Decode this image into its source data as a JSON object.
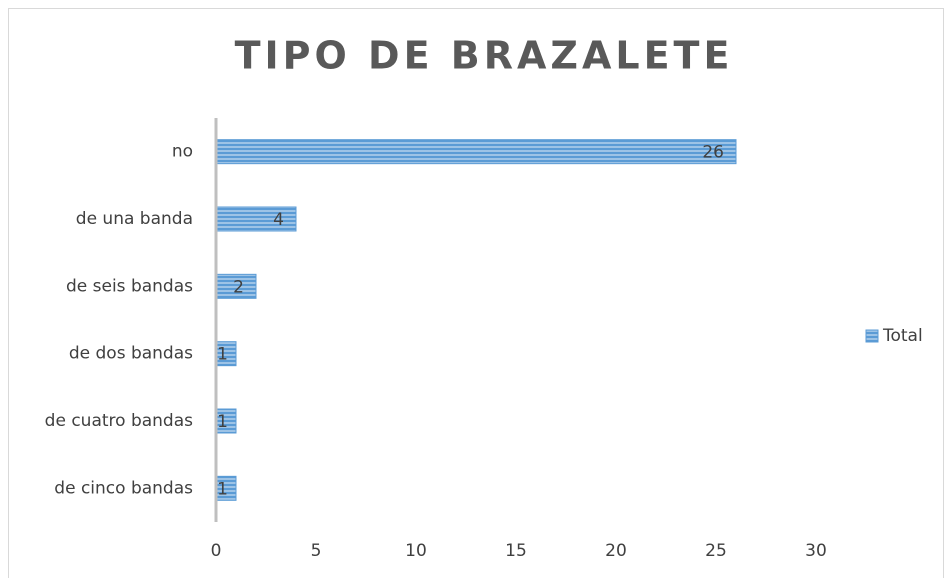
{
  "chart_data": {
    "type": "bar",
    "orientation": "horizontal",
    "title": "TIPO DE BRAZALETE",
    "categories": [
      "no",
      "de una banda",
      "de seis bandas",
      "de dos bandas",
      "de cuatro bandas",
      "de cinco bandas"
    ],
    "series": [
      {
        "name": "Total",
        "color": "#5b9bd5",
        "values": [
          26,
          4,
          2,
          1,
          1,
          1
        ]
      }
    ],
    "xlim": [
      0,
      30
    ],
    "xticks": [
      0,
      5,
      10,
      15,
      20,
      25,
      30
    ],
    "grid": false,
    "legend": "right",
    "data_labels": true
  }
}
